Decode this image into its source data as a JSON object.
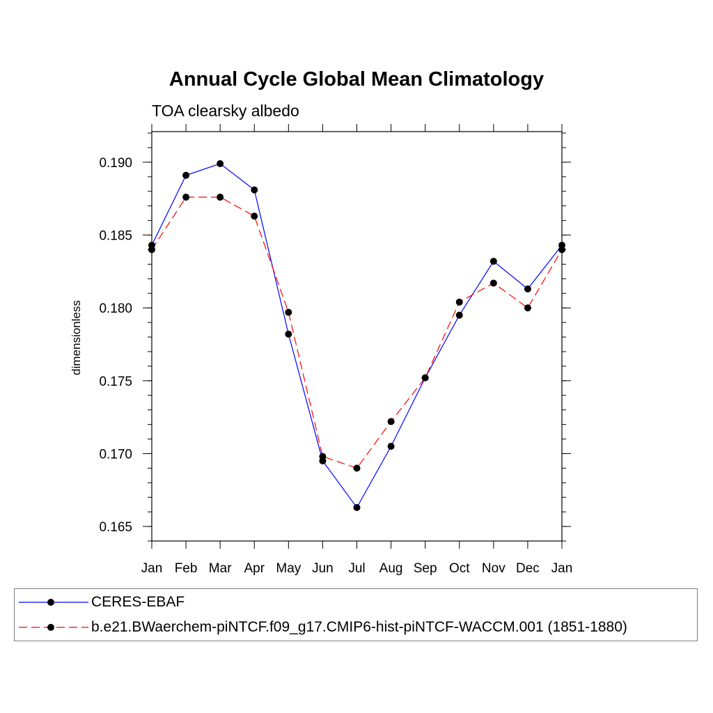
{
  "chart_data": {
    "type": "line",
    "title": "Annual Cycle Global Mean Climatology",
    "subtitle": "TOA clearsky albedo",
    "xlabel": "",
    "ylabel": "dimensionless",
    "categories": [
      "Jan",
      "Feb",
      "Mar",
      "Apr",
      "May",
      "Jun",
      "Jul",
      "Aug",
      "Sep",
      "Oct",
      "Nov",
      "Dec",
      "Jan"
    ],
    "ylim": [
      0.164,
      0.1921
    ],
    "yticks": [
      "0.165",
      "0.170",
      "0.175",
      "0.180",
      "0.185",
      "0.190"
    ],
    "ytick_values": [
      0.165,
      0.17,
      0.175,
      0.18,
      0.185,
      0.19
    ],
    "grid": false,
    "legend_position": "bottom",
    "series": [
      {
        "name": "CERES-EBAF",
        "color": "#0000ff",
        "style": "solid",
        "values": [
          0.1843,
          0.1891,
          0.1899,
          0.1881,
          0.1782,
          0.1695,
          0.1663,
          0.1705,
          0.1752,
          0.1795,
          0.1832,
          0.1813,
          0.1843
        ]
      },
      {
        "name": "b.e21.BWaerchem-piNTCF.f09_g17.CMIP6-hist-piNTCF-WACCM.001 (1851-1880)",
        "color": "#ff0000",
        "style": "dashed",
        "values": [
          0.184,
          0.1876,
          0.1876,
          0.1863,
          0.1797,
          0.1698,
          0.169,
          0.1722,
          0.1752,
          0.1804,
          0.1817,
          0.18,
          0.184
        ]
      }
    ],
    "marker_color": "#000000"
  }
}
